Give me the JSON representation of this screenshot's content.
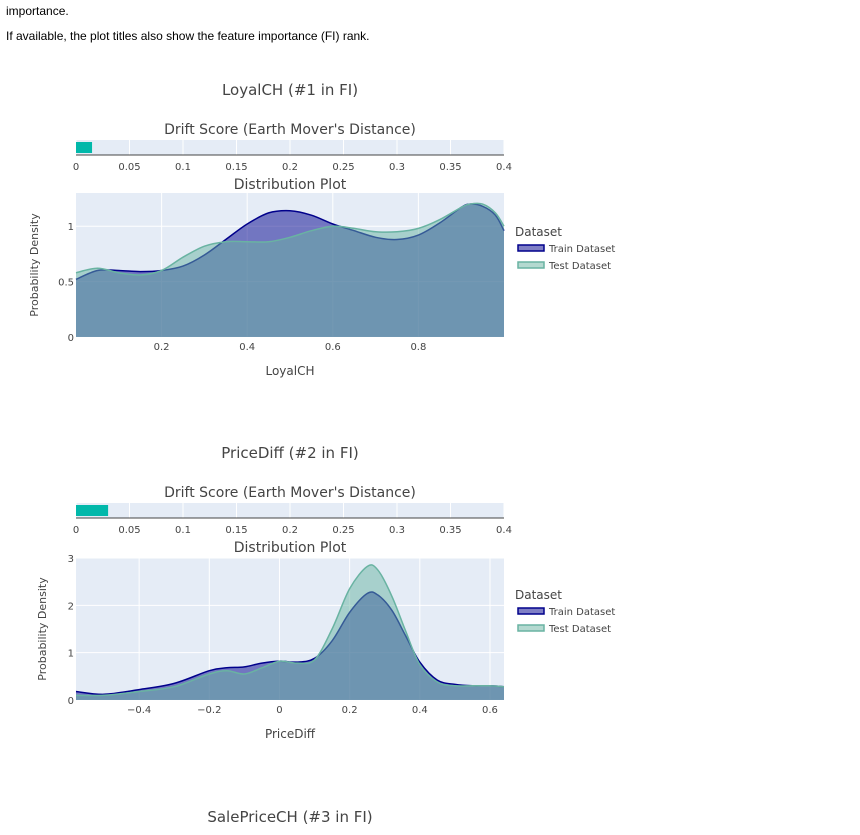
{
  "intro": {
    "line1": "importance.",
    "line2": "If available, the plot titles also show the feature importance (FI) rank."
  },
  "colors": {
    "train": "#00008b",
    "test": "#69b3a2",
    "drift_bar": "#01b8aa",
    "plot_bg": "#e5ecf6",
    "text": "#444444"
  },
  "chart_data": [
    {
      "type": "area",
      "title": "LoyalCH (#1 in FI)",
      "drift": {
        "title": "Drift Score (Earth Mover's Distance)",
        "value": 0.015,
        "xlim": [
          0,
          0.4
        ],
        "ticks": [
          "0",
          "0.05",
          "0.1",
          "0.15",
          "0.2",
          "0.25",
          "0.3",
          "0.35",
          "0.4"
        ]
      },
      "dist": {
        "title": "Distribution Plot",
        "xlabel": "LoyalCH",
        "ylabel": "Probability Density",
        "xlim": [
          0,
          1
        ],
        "ylim": [
          0,
          1.3
        ],
        "xticks": [
          0.2,
          0.4,
          0.6,
          0.8
        ],
        "xtick_labels": [
          "0.2",
          "0.4",
          "0.6",
          "0.8"
        ],
        "yticks": [
          0,
          0.5,
          1
        ],
        "ytick_labels": [
          "0",
          "0.5",
          "1"
        ],
        "x": [
          0,
          0.05,
          0.1,
          0.15,
          0.2,
          0.25,
          0.3,
          0.35,
          0.4,
          0.45,
          0.5,
          0.55,
          0.6,
          0.65,
          0.7,
          0.75,
          0.8,
          0.85,
          0.9,
          0.92,
          0.95,
          0.98,
          1.0
        ],
        "series": [
          {
            "name": "Train Dataset",
            "values": [
              0.52,
              0.6,
              0.6,
              0.59,
              0.6,
              0.64,
              0.74,
              0.88,
              1.02,
              1.12,
              1.14,
              1.1,
              1.02,
              0.96,
              0.9,
              0.88,
              0.92,
              1.03,
              1.17,
              1.2,
              1.18,
              1.1,
              0.96
            ]
          },
          {
            "name": "Test Dataset",
            "values": [
              0.58,
              0.62,
              0.58,
              0.56,
              0.6,
              0.72,
              0.82,
              0.86,
              0.86,
              0.86,
              0.9,
              0.96,
              1.0,
              0.98,
              0.95,
              0.95,
              0.98,
              1.06,
              1.17,
              1.2,
              1.2,
              1.12,
              1.0
            ]
          }
        ],
        "legend_title": "Dataset",
        "legend_position": "right"
      }
    },
    {
      "type": "area",
      "title": "PriceDiff (#2 in FI)",
      "drift": {
        "title": "Drift Score (Earth Mover's Distance)",
        "value": 0.03,
        "xlim": [
          0,
          0.4
        ],
        "ticks": [
          "0",
          "0.05",
          "0.1",
          "0.15",
          "0.2",
          "0.25",
          "0.3",
          "0.35",
          "0.4"
        ]
      },
      "dist": {
        "title": "Distribution Plot",
        "xlabel": "PriceDiff",
        "ylabel": "Probability Density",
        "xlim": [
          -0.58,
          0.64
        ],
        "ylim": [
          0,
          3.0
        ],
        "xticks": [
          -0.4,
          -0.2,
          0,
          0.2,
          0.4,
          0.6
        ],
        "xtick_labels": [
          "−0.4",
          "−0.2",
          "0",
          "0.2",
          "0.4",
          "0.6"
        ],
        "yticks": [
          0,
          1,
          2,
          3
        ],
        "ytick_labels": [
          "0",
          "1",
          "2",
          "3"
        ],
        "x": [
          -0.58,
          -0.5,
          -0.4,
          -0.3,
          -0.2,
          -0.15,
          -0.1,
          -0.05,
          0,
          0.05,
          0.1,
          0.15,
          0.2,
          0.25,
          0.28,
          0.32,
          0.36,
          0.4,
          0.45,
          0.5,
          0.55,
          0.6,
          0.64
        ],
        "series": [
          {
            "name": "Train Dataset",
            "values": [
              0.18,
              0.12,
              0.22,
              0.35,
              0.62,
              0.68,
              0.7,
              0.78,
              0.82,
              0.8,
              0.88,
              1.25,
              1.85,
              2.25,
              2.22,
              1.9,
              1.35,
              0.8,
              0.42,
              0.33,
              0.3,
              0.3,
              0.28
            ]
          },
          {
            "name": "Test Dataset",
            "values": [
              0.1,
              0.1,
              0.18,
              0.28,
              0.55,
              0.62,
              0.55,
              0.68,
              0.82,
              0.78,
              0.85,
              1.5,
              2.35,
              2.82,
              2.75,
              2.2,
              1.45,
              0.75,
              0.38,
              0.3,
              0.3,
              0.3,
              0.28
            ]
          }
        ],
        "legend_title": "Dataset",
        "legend_position": "right"
      }
    },
    {
      "type": "area",
      "title": "SalePriceCH (#3 in FI)"
    }
  ]
}
